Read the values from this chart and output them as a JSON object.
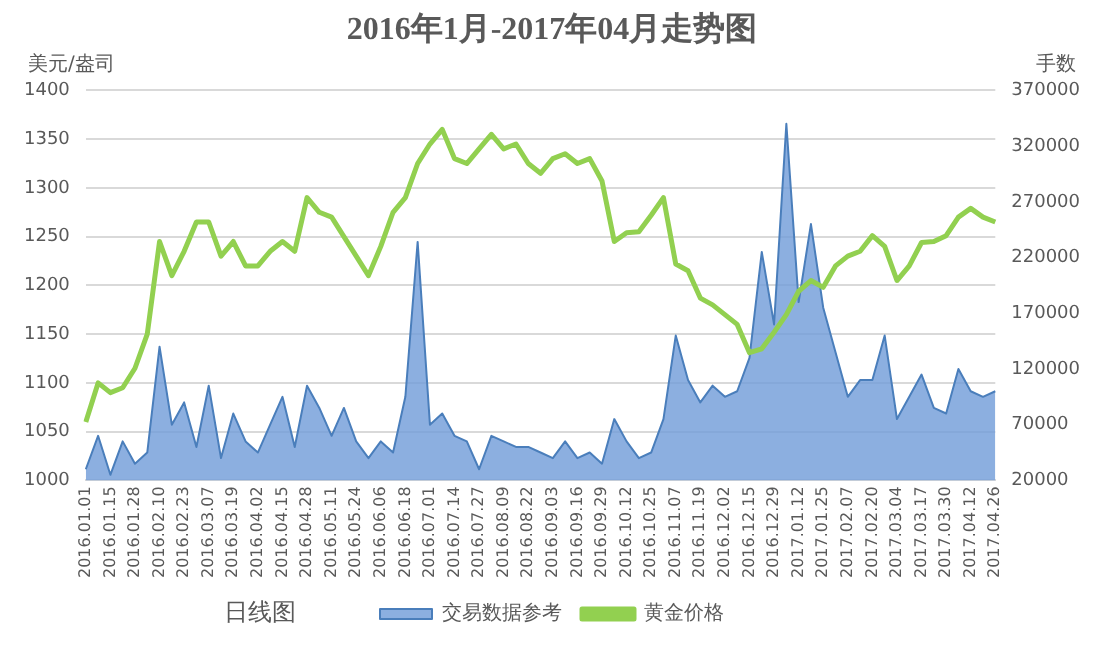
{
  "chart_data": {
    "type": "line",
    "title": "2016年1月-2017年04月走势图",
    "ylabel": "美元/盎司",
    "y2label": "手数",
    "annotations": [
      "日线图"
    ],
    "categories": [
      "2016.01.01",
      null,
      "2016.01.15",
      null,
      "2016.01.28",
      null,
      "2016.02.10",
      null,
      "2016.02.23",
      null,
      "2016.03.07",
      null,
      "2016.03.19",
      null,
      "2016.04.02",
      null,
      "2016.04.15",
      null,
      "2016.04.28",
      null,
      "2016.05.11",
      null,
      "2016.05.24",
      null,
      "2016.06.06",
      null,
      "2016.06.18",
      null,
      "2016.07.01",
      null,
      "2016.07.14",
      null,
      "2016.07.27",
      null,
      "2016.08.09",
      null,
      "2016.08.22",
      null,
      "2016.09.03",
      null,
      "2016.09.16",
      null,
      "2016.09.29",
      null,
      "2016.10.12",
      null,
      "2016.10.25",
      null,
      "2016.11.07",
      null,
      "2016.11.19",
      null,
      "2016.12.02",
      null,
      "2016.12.15",
      null,
      "2016.12.29",
      null,
      "2017.01.12",
      null,
      "2017.01.25",
      null,
      "2017.02.07",
      null,
      "2017.02.20",
      null,
      "2017.03.04",
      null,
      "2017.03.17",
      null,
      "2017.03.30",
      null,
      "2017.04.12",
      null,
      "2017.04.26"
    ],
    "series": [
      {
        "name": "交易数据参考",
        "type": "area",
        "axis": "y2",
        "color": "#6f9bd8",
        "values": [
          30000,
          60000,
          25000,
          55000,
          35000,
          45000,
          140000,
          70000,
          90000,
          50000,
          105000,
          40000,
          80000,
          55000,
          45000,
          70000,
          95000,
          50000,
          105000,
          85000,
          60000,
          85000,
          55000,
          40000,
          55000,
          45000,
          95000,
          234000,
          70000,
          80000,
          60000,
          55000,
          30000,
          60000,
          55000,
          50000,
          50000,
          45000,
          40000,
          55000,
          40000,
          45000,
          35000,
          75000,
          55000,
          40000,
          45000,
          75000,
          150000,
          110000,
          90000,
          105000,
          95000,
          100000,
          130000,
          225000,
          160000,
          340000,
          180000,
          250000,
          175000,
          135000,
          95000,
          110000,
          110000,
          150000,
          75000,
          95000,
          115000,
          85000,
          80000,
          120000,
          100000,
          95000,
          100000
        ]
      },
      {
        "name": "黄金价格",
        "type": "line",
        "color": "#92d050",
        "values": [
          1060,
          1100,
          1090,
          1095,
          1115,
          1150,
          1245,
          1210,
          1235,
          1265,
          1265,
          1230,
          1245,
          1220,
          1220,
          1235,
          1245,
          1235,
          1290,
          1275,
          1270,
          1250,
          1230,
          1210,
          1240,
          1275,
          1290,
          1325,
          1345,
          1360,
          1330,
          1325,
          1340,
          1355,
          1340,
          1345,
          1325,
          1315,
          1330,
          1335,
          1325,
          1330,
          1307,
          1245,
          1254,
          1255,
          1272,
          1290,
          1222,
          1215,
          1187,
          1180,
          1170,
          1160,
          1131,
          1135,
          1152,
          1170,
          1194,
          1205,
          1198,
          1220,
          1230,
          1235,
          1251,
          1240,
          1205,
          1220,
          1244,
          1245,
          1251,
          1270,
          1279,
          1270,
          1265
        ]
      }
    ],
    "ylim": [
      1000,
      1400
    ],
    "yticks": [
      1000,
      1050,
      1100,
      1150,
      1200,
      1250,
      1300,
      1350,
      1400
    ],
    "y2lim": [
      20000,
      370000
    ],
    "y2ticks": [
      20000,
      70000,
      120000,
      170000,
      220000,
      270000,
      320000,
      370000
    ],
    "grid": "y",
    "legend": "bottom",
    "marker": "none",
    "line_style": "solid"
  }
}
